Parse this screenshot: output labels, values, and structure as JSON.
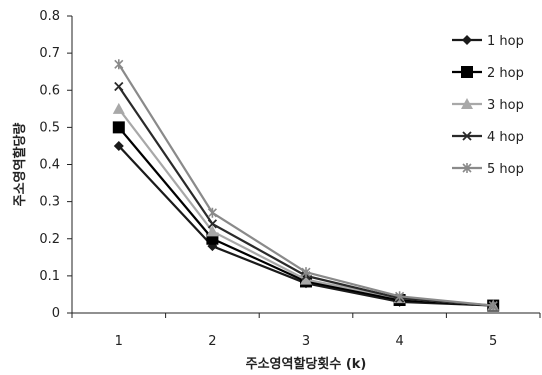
{
  "chart_data": {
    "type": "line",
    "title": "",
    "xlabel": "주소영역할당횟수 (k)",
    "ylabel": "주소영역할당량",
    "x": [
      1,
      2,
      3,
      4,
      5
    ],
    "xlim": [
      0.5,
      5.5
    ],
    "ylim": [
      0,
      0.8
    ],
    "yticks": [
      0,
      0.1,
      0.2,
      0.3,
      0.4,
      0.5,
      0.6,
      0.7,
      0.8
    ],
    "yticklabels": [
      "0",
      "0.1",
      "0.2",
      "0.3",
      "0.4",
      "0.5",
      "0.6",
      "0.7",
      "0.8"
    ],
    "xticklabels": [
      "1",
      "2",
      "3",
      "4",
      "5"
    ],
    "grid": false,
    "legend_position": "right",
    "series": [
      {
        "name": "1 hop",
        "values": [
          0.45,
          0.18,
          0.08,
          0.03,
          0.02
        ],
        "color": "#1a1a1a",
        "marker": "diamond"
      },
      {
        "name": "2 hop",
        "values": [
          0.5,
          0.2,
          0.085,
          0.035,
          0.02
        ],
        "color": "#000000",
        "marker": "square"
      },
      {
        "name": "3 hop",
        "values": [
          0.55,
          0.22,
          0.09,
          0.04,
          0.02
        ],
        "color": "#a8a8a8",
        "marker": "triangle"
      },
      {
        "name": "4 hop",
        "values": [
          0.61,
          0.24,
          0.1,
          0.04,
          0.02
        ],
        "color": "#2a2a2a",
        "marker": "x"
      },
      {
        "name": "5 hop",
        "values": [
          0.67,
          0.27,
          0.11,
          0.045,
          0.02
        ],
        "color": "#8a8a8a",
        "marker": "star"
      }
    ]
  }
}
